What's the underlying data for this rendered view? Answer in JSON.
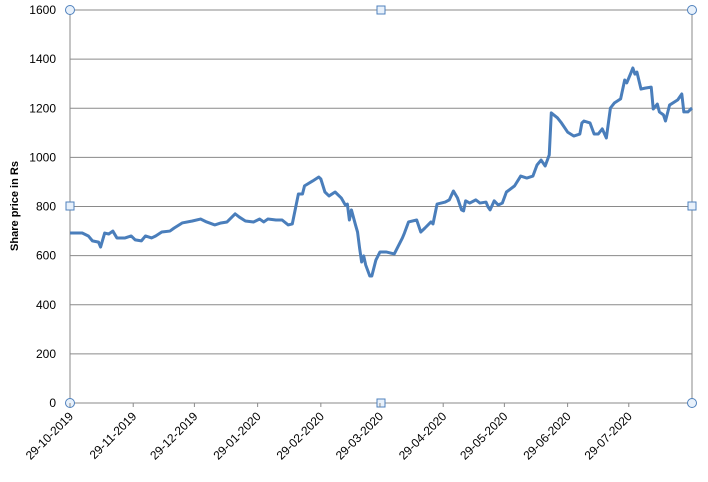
{
  "chart_data": {
    "type": "line",
    "y_label": "Share price in Rs",
    "color": "#4a7ebb",
    "grid": true,
    "ylim": [
      0,
      1600
    ],
    "yticks": [
      0,
      200,
      400,
      600,
      800,
      1000,
      1200,
      1400,
      1600
    ],
    "xlim": [
      "29-10-2019",
      "29-08-2020"
    ],
    "xticks": [
      "29-10-2019",
      "29-11-2019",
      "29-12-2019",
      "29-01-2020",
      "29-02-2020",
      "29-03-2020",
      "29-04-2020",
      "29-05-2020",
      "29-06-2020",
      "29-07-2020"
    ],
    "x": [
      "29-10-2019",
      "04-11-2019",
      "07-11-2019",
      "09-11-2019",
      "12-11-2019",
      "13-11-2019",
      "15-11-2019",
      "17-11-2019",
      "19-11-2019",
      "21-11-2019",
      "25-11-2019",
      "28-11-2019",
      "30-11-2019",
      "03-12-2019",
      "05-12-2019",
      "08-12-2019",
      "10-12-2019",
      "13-12-2019",
      "17-12-2019",
      "19-12-2019",
      "23-12-2019",
      "28-12-2019",
      "01-01-2020",
      "04-01-2020",
      "08-01-2020",
      "11-01-2020",
      "14-01-2020",
      "18-01-2020",
      "20-01-2020",
      "23-01-2020",
      "27-01-2020",
      "30-01-2020",
      "01-02-2020",
      "03-02-2020",
      "07-02-2020",
      "10-02-2020",
      "13-02-2020",
      "15-02-2020",
      "18-02-2020",
      "20-02-2020",
      "21-02-2020",
      "25-02-2020",
      "28-02-2020",
      "29-02-2020",
      "02-03-2020",
      "04-03-2020",
      "07-03-2020",
      "10-03-2020",
      "12-03-2020",
      "13-03-2020",
      "14-03-2020",
      "15-03-2020",
      "17-03-2020",
      "18-03-2020",
      "19-03-2020",
      "20-03-2020",
      "21-03-2020",
      "22-03-2020",
      "24-03-2020",
      "25-03-2020",
      "27-03-2020",
      "29-03-2020",
      "01-04-2020",
      "03-04-2020",
      "05-04-2020",
      "09-04-2020",
      "10-04-2020",
      "12-04-2020",
      "16-04-2020",
      "18-04-2020",
      "20-04-2020",
      "23-04-2020",
      "24-04-2020",
      "26-04-2020",
      "28-04-2020",
      "30-04-2020",
      "02-05-2020",
      "04-05-2020",
      "06-05-2020",
      "08-05-2020",
      "09-05-2020",
      "10-05-2020",
      "12-05-2020",
      "15-05-2020",
      "17-05-2020",
      "20-05-2020",
      "21-05-2020",
      "22-05-2020",
      "24-05-2020",
      "26-05-2020",
      "28-05-2020",
      "30-05-2020",
      "03-06-2020",
      "06-06-2020",
      "09-06-2020",
      "12-06-2020",
      "14-06-2020",
      "16-06-2020",
      "18-06-2020",
      "20-06-2020",
      "21-06-2020",
      "24-06-2020",
      "26-06-2020",
      "29-06-2020",
      "02-07-2020",
      "05-07-2020",
      "06-07-2020",
      "07-07-2020",
      "10-07-2020",
      "12-07-2020",
      "14-07-2020",
      "16-07-2020",
      "18-07-2020",
      "20-07-2020",
      "22-07-2020",
      "25-07-2020",
      "27-07-2020",
      "28-07-2020",
      "30-07-2020",
      "31-07-2020",
      "01-08-2020",
      "02-08-2020",
      "04-08-2020",
      "06-08-2020",
      "09-08-2020",
      "10-08-2020",
      "12-08-2020",
      "13-08-2020",
      "15-08-2020",
      "16-08-2020",
      "18-08-2020",
      "22-08-2020",
      "24-08-2020",
      "25-08-2020",
      "27-08-2020",
      "29-08-2020"
    ],
    "values": [
      692,
      692,
      680,
      660,
      655,
      635,
      692,
      688,
      700,
      672,
      672,
      680,
      664,
      660,
      680,
      672,
      680,
      696,
      700,
      712,
      733,
      741,
      749,
      737,
      725,
      733,
      737,
      770,
      757,
      741,
      737,
      749,
      737,
      749,
      745,
      745,
      725,
      729,
      851,
      851,
      884,
      904,
      920,
      912,
      859,
      843,
      859,
      835,
      806,
      810,
      745,
      786,
      725,
      696,
      631,
      574,
      599,
      562,
      517,
      517,
      582,
      615,
      615,
      611,
      607,
      672,
      692,
      737,
      745,
      696,
      712,
      737,
      729,
      810,
      814,
      818,
      827,
      863,
      835,
      786,
      782,
      823,
      814,
      827,
      814,
      818,
      798,
      786,
      823,
      806,
      814,
      859,
      884,
      924,
      916,
      924,
      969,
      989,
      965,
      1010,
      1181,
      1161,
      1140,
      1103,
      1087,
      1095,
      1140,
      1148,
      1140,
      1095,
      1095,
      1116,
      1079,
      1201,
      1222,
      1238,
      1315,
      1303,
      1343,
      1364,
      1339,
      1347,
      1278,
      1282,
      1286,
      1197,
      1217,
      1185,
      1173,
      1148,
      1213,
      1234,
      1258,
      1185,
      1185,
      1201
    ]
  }
}
